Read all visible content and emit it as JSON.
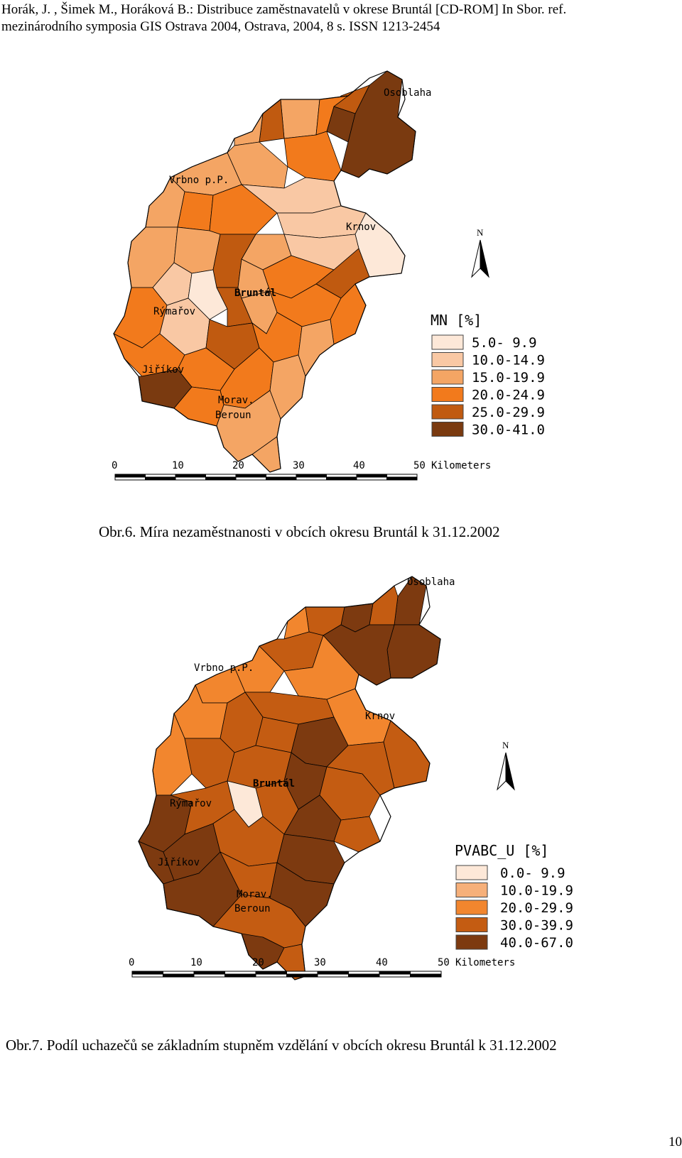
{
  "header": {
    "line1": "Horák, J. , Šimek M., Horáková B.:  Distribuce zaměstnavatelů v okrese Bruntál [CD-ROM] In Sbor. ref.",
    "line2": "mezinárodního symposia GIS Ostrava 2004, Ostrava, 2004, 8 s. ISSN 1213-2454"
  },
  "maps": [
    {
      "caption": "Obr.6. Míra nezaměstnanosti v obcích okresu Bruntál k 31.12.2002",
      "towns": [
        "Osoblaha",
        "Vrbno p.P.",
        "Krnov",
        "Bruntál",
        "Rýmařov",
        "Jiříkov",
        "Morav.",
        "Beroun"
      ],
      "north_label": "N",
      "legend": {
        "title": "MN [%]",
        "classes": [
          {
            "label": "5.0- 9.9",
            "color": "#fde8d8"
          },
          {
            "label": "10.0-14.9",
            "color": "#f9c8a4"
          },
          {
            "label": "15.0-19.9",
            "color": "#f4a564"
          },
          {
            "label": "20.0-24.9",
            "color": "#f27a1c"
          },
          {
            "label": "25.0-29.9",
            "color": "#c05a10"
          },
          {
            "label": "30.0-41.0",
            "color": "#7a3a10"
          }
        ]
      },
      "scale": {
        "ticks": [
          "0",
          "10",
          "20",
          "30",
          "40",
          "50"
        ],
        "unit": "Kilometers"
      }
    },
    {
      "caption": "Obr.7. Podíl uchazečů se základním stupněm vzdělání v obcích okresu Bruntál k 31.12.2002",
      "towns": [
        "Osoblaha",
        "Vrbno p.P.",
        "Krnov",
        "Bruntál",
        "Rýmařov",
        "Jiříkov",
        "Morav.",
        "Beroun"
      ],
      "north_label": "N",
      "legend": {
        "title": "PVABC_U [%]",
        "classes": [
          {
            "label": "0.0- 9.9",
            "color": "#fde8d8"
          },
          {
            "label": "10.0-19.9",
            "color": "#f6b07a"
          },
          {
            "label": "20.0-29.9",
            "color": "#f2862e"
          },
          {
            "label": "30.0-39.9",
            "color": "#c45c12"
          },
          {
            "label": "40.0-67.0",
            "color": "#7d3a10"
          }
        ]
      },
      "scale": {
        "ticks": [
          "0",
          "10",
          "20",
          "30",
          "40",
          "50"
        ],
        "unit": "Kilometers"
      }
    }
  ],
  "page_number": "10"
}
